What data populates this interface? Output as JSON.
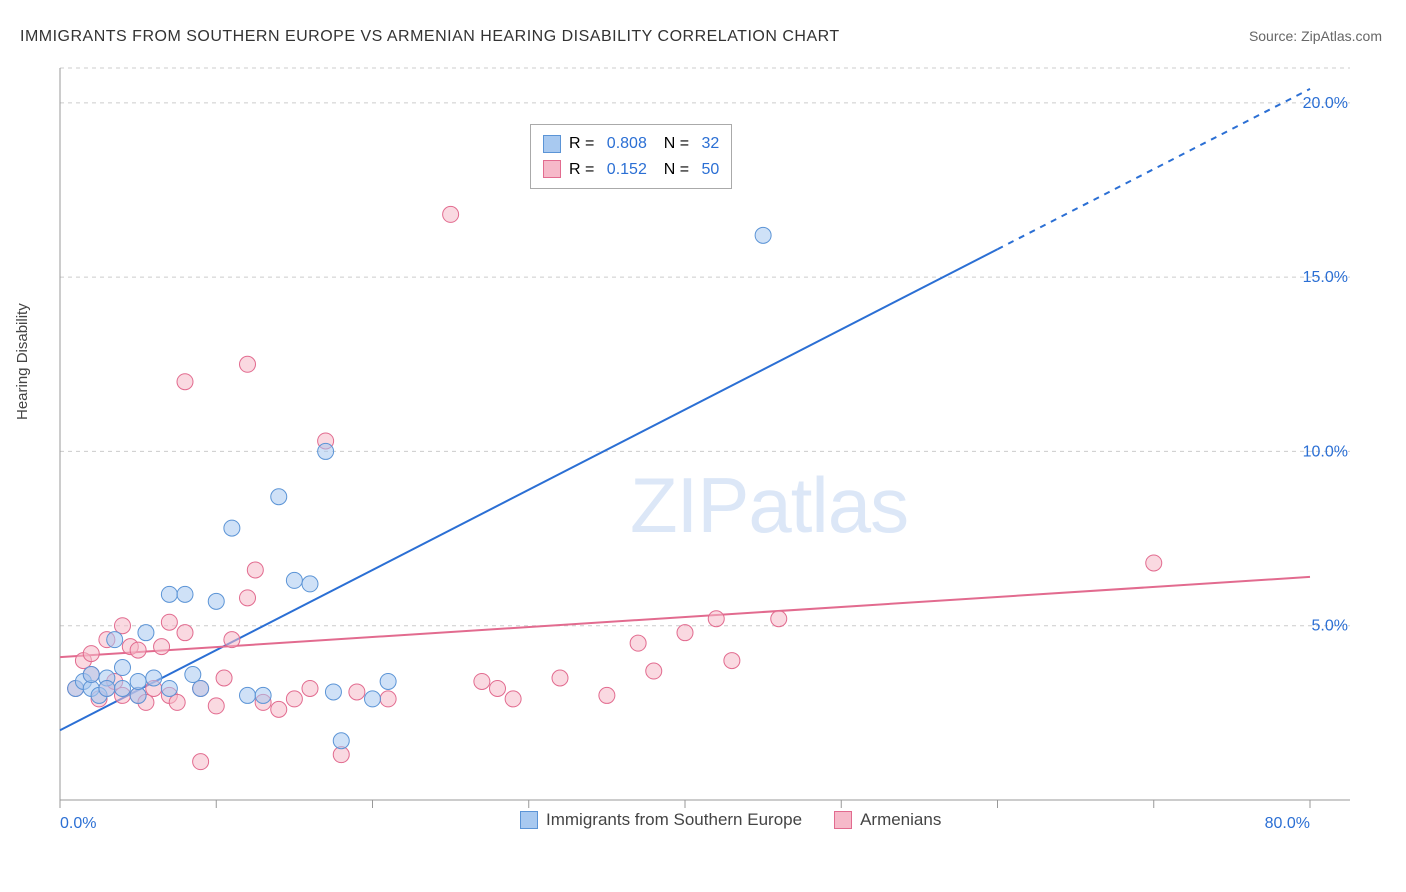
{
  "title": "IMMIGRANTS FROM SOUTHERN EUROPE VS ARMENIAN HEARING DISABILITY CORRELATION CHART",
  "source": "Source: ZipAtlas.com",
  "y_axis_label": "Hearing Disability",
  "watermark": "ZIPatlas",
  "chart": {
    "type": "scatter",
    "background_color": "#ffffff",
    "grid_color": "#cccccc",
    "axis_color": "#999999",
    "text_color": "#333333",
    "xlim": [
      0,
      80
    ],
    "ylim": [
      0,
      21
    ],
    "x_ticks": [
      0,
      10,
      20,
      30,
      40,
      50,
      60,
      70,
      80
    ],
    "x_tick_labels": [
      "0.0%",
      "",
      "",
      "",
      "",
      "",
      "",
      "",
      "80.0%"
    ],
    "y_ticks": [
      5,
      10,
      15,
      20
    ],
    "y_tick_labels": [
      "5.0%",
      "10.0%",
      "15.0%",
      "20.0%"
    ],
    "marker_radius": 8,
    "marker_opacity": 0.55,
    "series": [
      {
        "name": "Immigrants from Southern Europe",
        "color_fill": "#a8c9f0",
        "color_stroke": "#5b94d6",
        "r_value": "0.808",
        "n_value": "32",
        "trend_line": {
          "x1": 0,
          "y1": 2.0,
          "x2": 60,
          "y2": 15.8,
          "x2_dash": 80,
          "y2_dash": 20.4,
          "color": "#2b6fd4",
          "width": 2
        },
        "points": [
          [
            1,
            3.2
          ],
          [
            1.5,
            3.4
          ],
          [
            2,
            3.2
          ],
          [
            2,
            3.6
          ],
          [
            2.5,
            3.0
          ],
          [
            3,
            3.5
          ],
          [
            3,
            3.2
          ],
          [
            3.5,
            4.6
          ],
          [
            4,
            3.2
          ],
          [
            4,
            3.8
          ],
          [
            5,
            3.0
          ],
          [
            5,
            3.4
          ],
          [
            5.5,
            4.8
          ],
          [
            6,
            3.5
          ],
          [
            7,
            5.9
          ],
          [
            7,
            3.2
          ],
          [
            8,
            5.9
          ],
          [
            8.5,
            3.6
          ],
          [
            9,
            3.2
          ],
          [
            10,
            5.7
          ],
          [
            11,
            7.8
          ],
          [
            12,
            3.0
          ],
          [
            13,
            3.0
          ],
          [
            14,
            8.7
          ],
          [
            15,
            6.3
          ],
          [
            16,
            6.2
          ],
          [
            17,
            10.0
          ],
          [
            17.5,
            3.1
          ],
          [
            18,
            1.7
          ],
          [
            20,
            2.9
          ],
          [
            21,
            3.4
          ],
          [
            45,
            16.2
          ]
        ]
      },
      {
        "name": "Armenians",
        "color_fill": "#f6b9c9",
        "color_stroke": "#e26b8f",
        "r_value": "0.152",
        "n_value": "50",
        "trend_line": {
          "x1": 0,
          "y1": 4.1,
          "x2": 80,
          "y2": 6.4,
          "color": "#e26b8f",
          "width": 2
        },
        "points": [
          [
            1,
            3.2
          ],
          [
            1.5,
            4.0
          ],
          [
            2,
            3.6
          ],
          [
            2,
            4.2
          ],
          [
            2.5,
            2.9
          ],
          [
            3,
            3.2
          ],
          [
            3,
            4.6
          ],
          [
            3.5,
            3.4
          ],
          [
            4,
            5.0
          ],
          [
            4,
            3.0
          ],
          [
            4.5,
            4.4
          ],
          [
            5,
            3.0
          ],
          [
            5,
            4.3
          ],
          [
            5.5,
            2.8
          ],
          [
            6,
            3.2
          ],
          [
            6.5,
            4.4
          ],
          [
            7,
            3.0
          ],
          [
            7,
            5.1
          ],
          [
            7.5,
            2.8
          ],
          [
            8,
            4.8
          ],
          [
            8,
            12.0
          ],
          [
            9,
            3.2
          ],
          [
            9,
            1.1
          ],
          [
            10,
            2.7
          ],
          [
            10.5,
            3.5
          ],
          [
            11,
            4.6
          ],
          [
            12,
            12.5
          ],
          [
            12,
            5.8
          ],
          [
            12.5,
            6.6
          ],
          [
            13,
            2.8
          ],
          [
            14,
            2.6
          ],
          [
            15,
            2.9
          ],
          [
            16,
            3.2
          ],
          [
            17,
            10.3
          ],
          [
            18,
            1.3
          ],
          [
            19,
            3.1
          ],
          [
            21,
            2.9
          ],
          [
            25,
            16.8
          ],
          [
            27,
            3.4
          ],
          [
            28,
            3.2
          ],
          [
            29,
            2.9
          ],
          [
            32,
            3.5
          ],
          [
            35,
            3.0
          ],
          [
            37,
            4.5
          ],
          [
            38,
            3.7
          ],
          [
            40,
            4.8
          ],
          [
            42,
            5.2
          ],
          [
            43,
            4.0
          ],
          [
            46,
            5.2
          ],
          [
            70,
            6.8
          ]
        ]
      }
    ]
  },
  "bottom_legend": [
    {
      "label": "Immigrants from Southern Europe",
      "fill": "#a8c9f0",
      "stroke": "#5b94d6"
    },
    {
      "label": "Armenians",
      "fill": "#f6b9c9",
      "stroke": "#e26b8f"
    }
  ]
}
